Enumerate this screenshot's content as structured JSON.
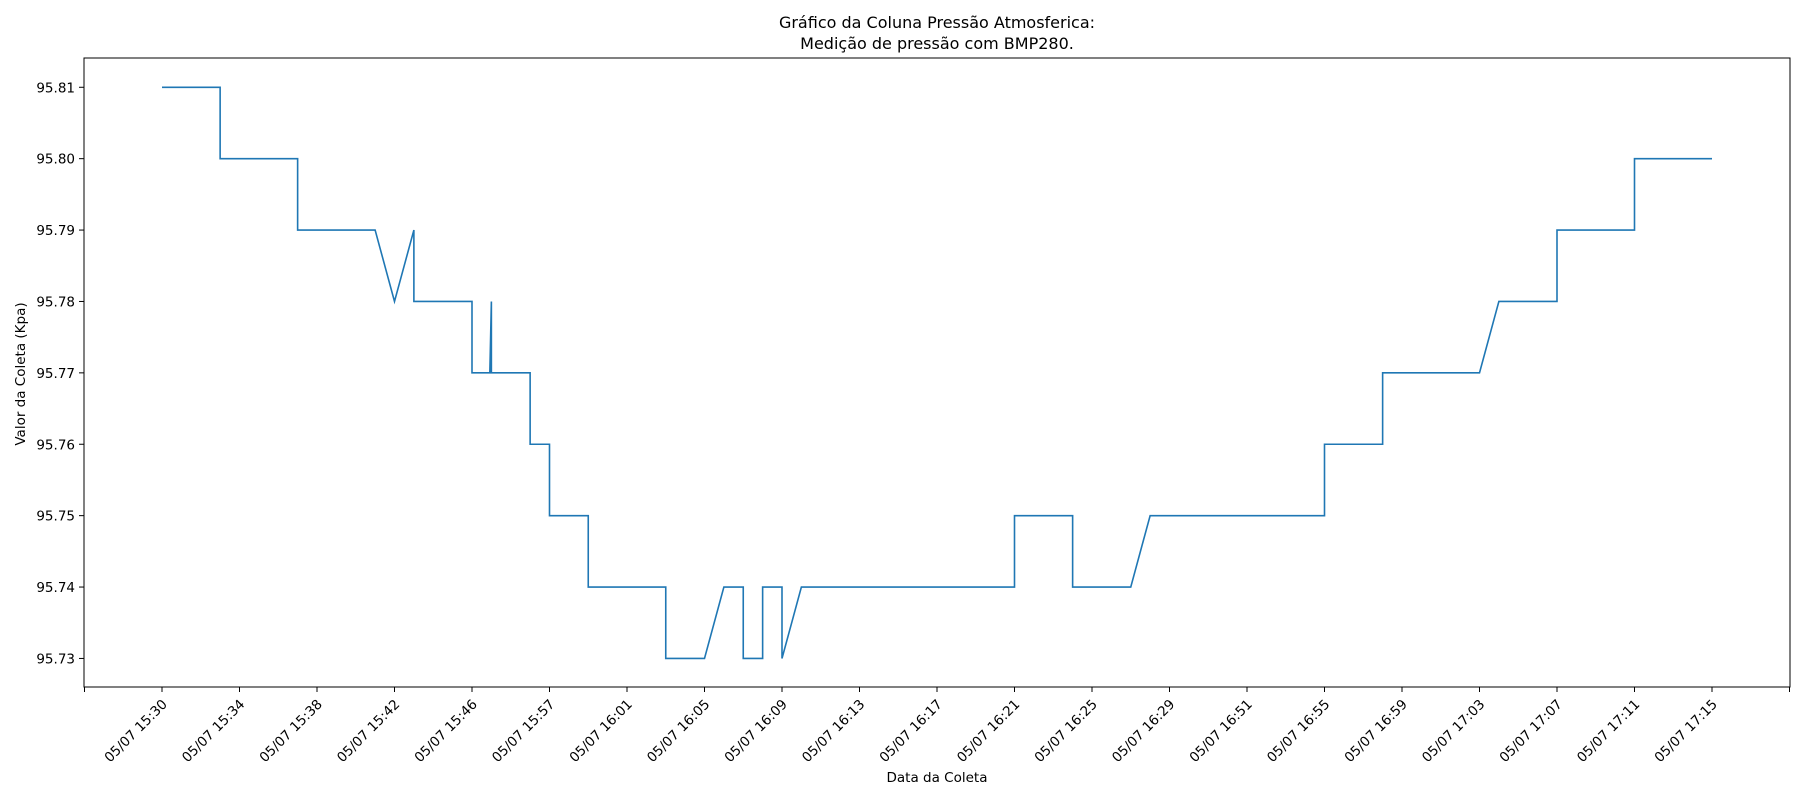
{
  "chart_data": {
    "type": "line",
    "title": "Gráfico da Coluna Pressão Atmosferica:",
    "subtitle": "Medição de pressão com BMP280.",
    "xlabel": "Data da Coleta",
    "ylabel": "Valor da Coleta (Kpa)",
    "x_tick_labels": [
      "05/07 15:30",
      "05/07 15:34",
      "05/07 15:38",
      "05/07 15:42",
      "05/07 15:46",
      "05/07 15:57",
      "05/07 16:01",
      "05/07 16:05",
      "05/07 16:09",
      "05/07 16:13",
      "05/07 16:17",
      "05/07 16:21",
      "05/07 16:25",
      "05/07 16:29",
      "05/07 16:51",
      "05/07 16:55",
      "05/07 16:59",
      "05/07 17:03",
      "05/07 17:07",
      "05/07 17:11",
      "05/07 17:15"
    ],
    "y_ticks": [
      95.73,
      95.74,
      95.75,
      95.76,
      95.77,
      95.78,
      95.79,
      95.8,
      95.81
    ],
    "y_tick_labels": [
      "95.73",
      "95.74",
      "95.75",
      "95.76",
      "95.77",
      "95.78",
      "95.79",
      "95.80",
      "95.81"
    ],
    "ylim": [
      95.726,
      95.8141
    ],
    "grid": false,
    "series": [
      {
        "color": "#1f77b4",
        "x": [
          0,
          0.75,
          0.75,
          1.75,
          1.75,
          2.75,
          3.0,
          3.0,
          3.25,
          3.25,
          3.98,
          4.0,
          4.0,
          4.23,
          4.25,
          4.25,
          4.75,
          4.75,
          5.0,
          5.0,
          5.5,
          5.5,
          6.5,
          6.5,
          7.0,
          7.25,
          7.5,
          7.5,
          7.75,
          7.75,
          8.0,
          8.0,
          8.25,
          8.5,
          11.0,
          11.0,
          11.75,
          11.75,
          12.5,
          12.75,
          15.0,
          15.0,
          15.75,
          15.75,
          17.0,
          17.25,
          18.0,
          18.0,
          19.0,
          19.0,
          20.0
        ],
        "y": [
          95.81,
          95.81,
          95.8,
          95.8,
          95.79,
          95.79,
          95.78,
          95.78,
          95.79,
          95.78,
          95.78,
          95.78,
          95.77,
          95.77,
          95.78,
          95.77,
          95.77,
          95.76,
          95.76,
          95.75,
          95.75,
          95.74,
          95.74,
          95.73,
          95.73,
          95.74,
          95.74,
          95.73,
          95.73,
          95.74,
          95.74,
          95.73,
          95.74,
          95.74,
          95.74,
          95.75,
          95.75,
          95.74,
          95.74,
          95.75,
          95.75,
          95.76,
          95.76,
          95.77,
          95.77,
          95.78,
          95.78,
          95.79,
          95.79,
          95.8,
          95.8
        ]
      }
    ]
  }
}
